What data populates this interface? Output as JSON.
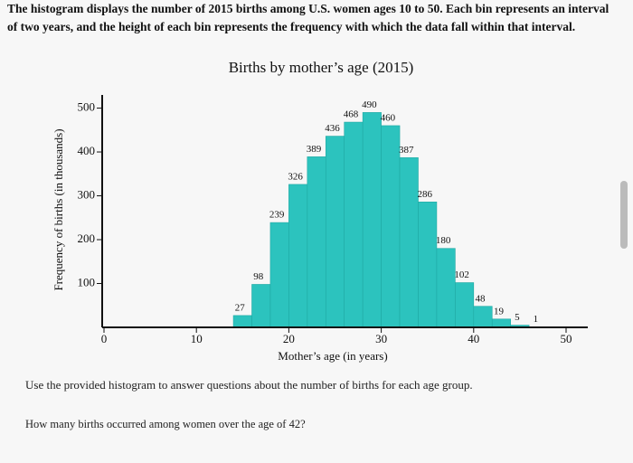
{
  "header": {
    "text": "The histogram displays the number of 2015 births among U.S. women ages 10 to 50. Each bin represents an interval of two years, and the height of each bin represents the frequency with which the data fall within that interval."
  },
  "chart_data": {
    "type": "histogram",
    "title": "Births by mother’s age (2015)",
    "x_label": "Mother’s age (in years)",
    "y_label": "Frequency of births (in thousands)",
    "bins": [
      14,
      16,
      18,
      20,
      22,
      24,
      26,
      28,
      30,
      32,
      34,
      36,
      38,
      40,
      42,
      44,
      46,
      48
    ],
    "values": [
      27,
      98,
      239,
      326,
      389,
      436,
      468,
      490,
      460,
      387,
      286,
      180,
      102,
      48,
      19,
      5,
      1
    ],
    "color": "#2cc3be",
    "xlim": [
      0,
      50
    ],
    "xticks": [
      0,
      10,
      20,
      30,
      40,
      50
    ],
    "ylim": [
      0,
      530
    ],
    "yticks": [
      100,
      200,
      300,
      400,
      500
    ]
  },
  "instructions": "Use the provided histogram to answer questions about the number of births for each age group.",
  "question": "How many births occurred among women over the age of 42?"
}
